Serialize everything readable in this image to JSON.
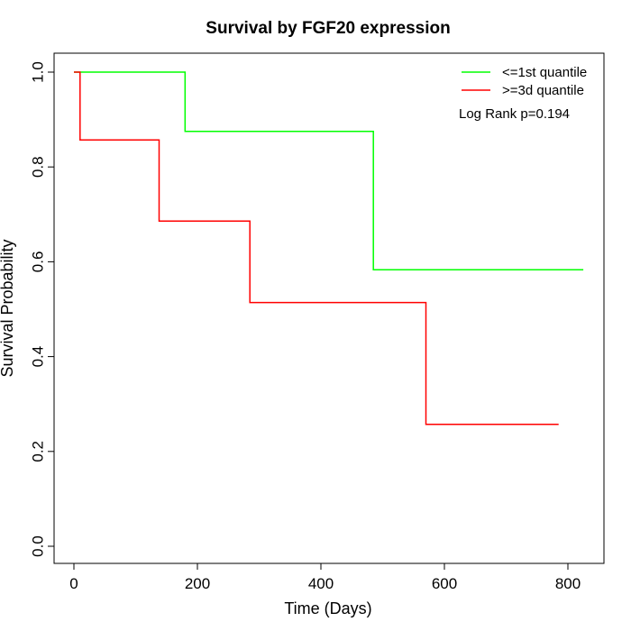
{
  "chart_data": {
    "type": "line",
    "title": "Survival by FGF20 expression",
    "xlabel": "Time (Days)",
    "ylabel": "Survival Probability",
    "xlim": [
      0,
      825
    ],
    "ylim": [
      0,
      1.0
    ],
    "xticks": [
      0,
      200,
      400,
      600,
      800
    ],
    "yticks": [
      0.0,
      0.2,
      0.4,
      0.6,
      0.8,
      1.0
    ],
    "xtick_labels": [
      "0",
      "200",
      "400",
      "600",
      "800"
    ],
    "ytick_labels": [
      "0.0",
      "0.2",
      "0.4",
      "0.6",
      "0.8",
      "1.0"
    ],
    "grid": false,
    "legend_position": "top-right",
    "annotation": "Log Rank p=0.194",
    "series": [
      {
        "name": "<=1st quantile",
        "color": "#00ff00",
        "x": [
          0,
          180,
          180,
          485,
          485,
          825
        ],
        "y": [
          1.0,
          1.0,
          0.875,
          0.875,
          0.583,
          0.583
        ]
      },
      {
        "name": ">=3d quantile",
        "color": "#ff0000",
        "x": [
          0,
          10,
          10,
          138,
          138,
          285,
          285,
          570,
          570,
          785
        ],
        "y": [
          1.0,
          1.0,
          0.857,
          0.857,
          0.686,
          0.686,
          0.514,
          0.514,
          0.257,
          0.257
        ]
      }
    ]
  }
}
